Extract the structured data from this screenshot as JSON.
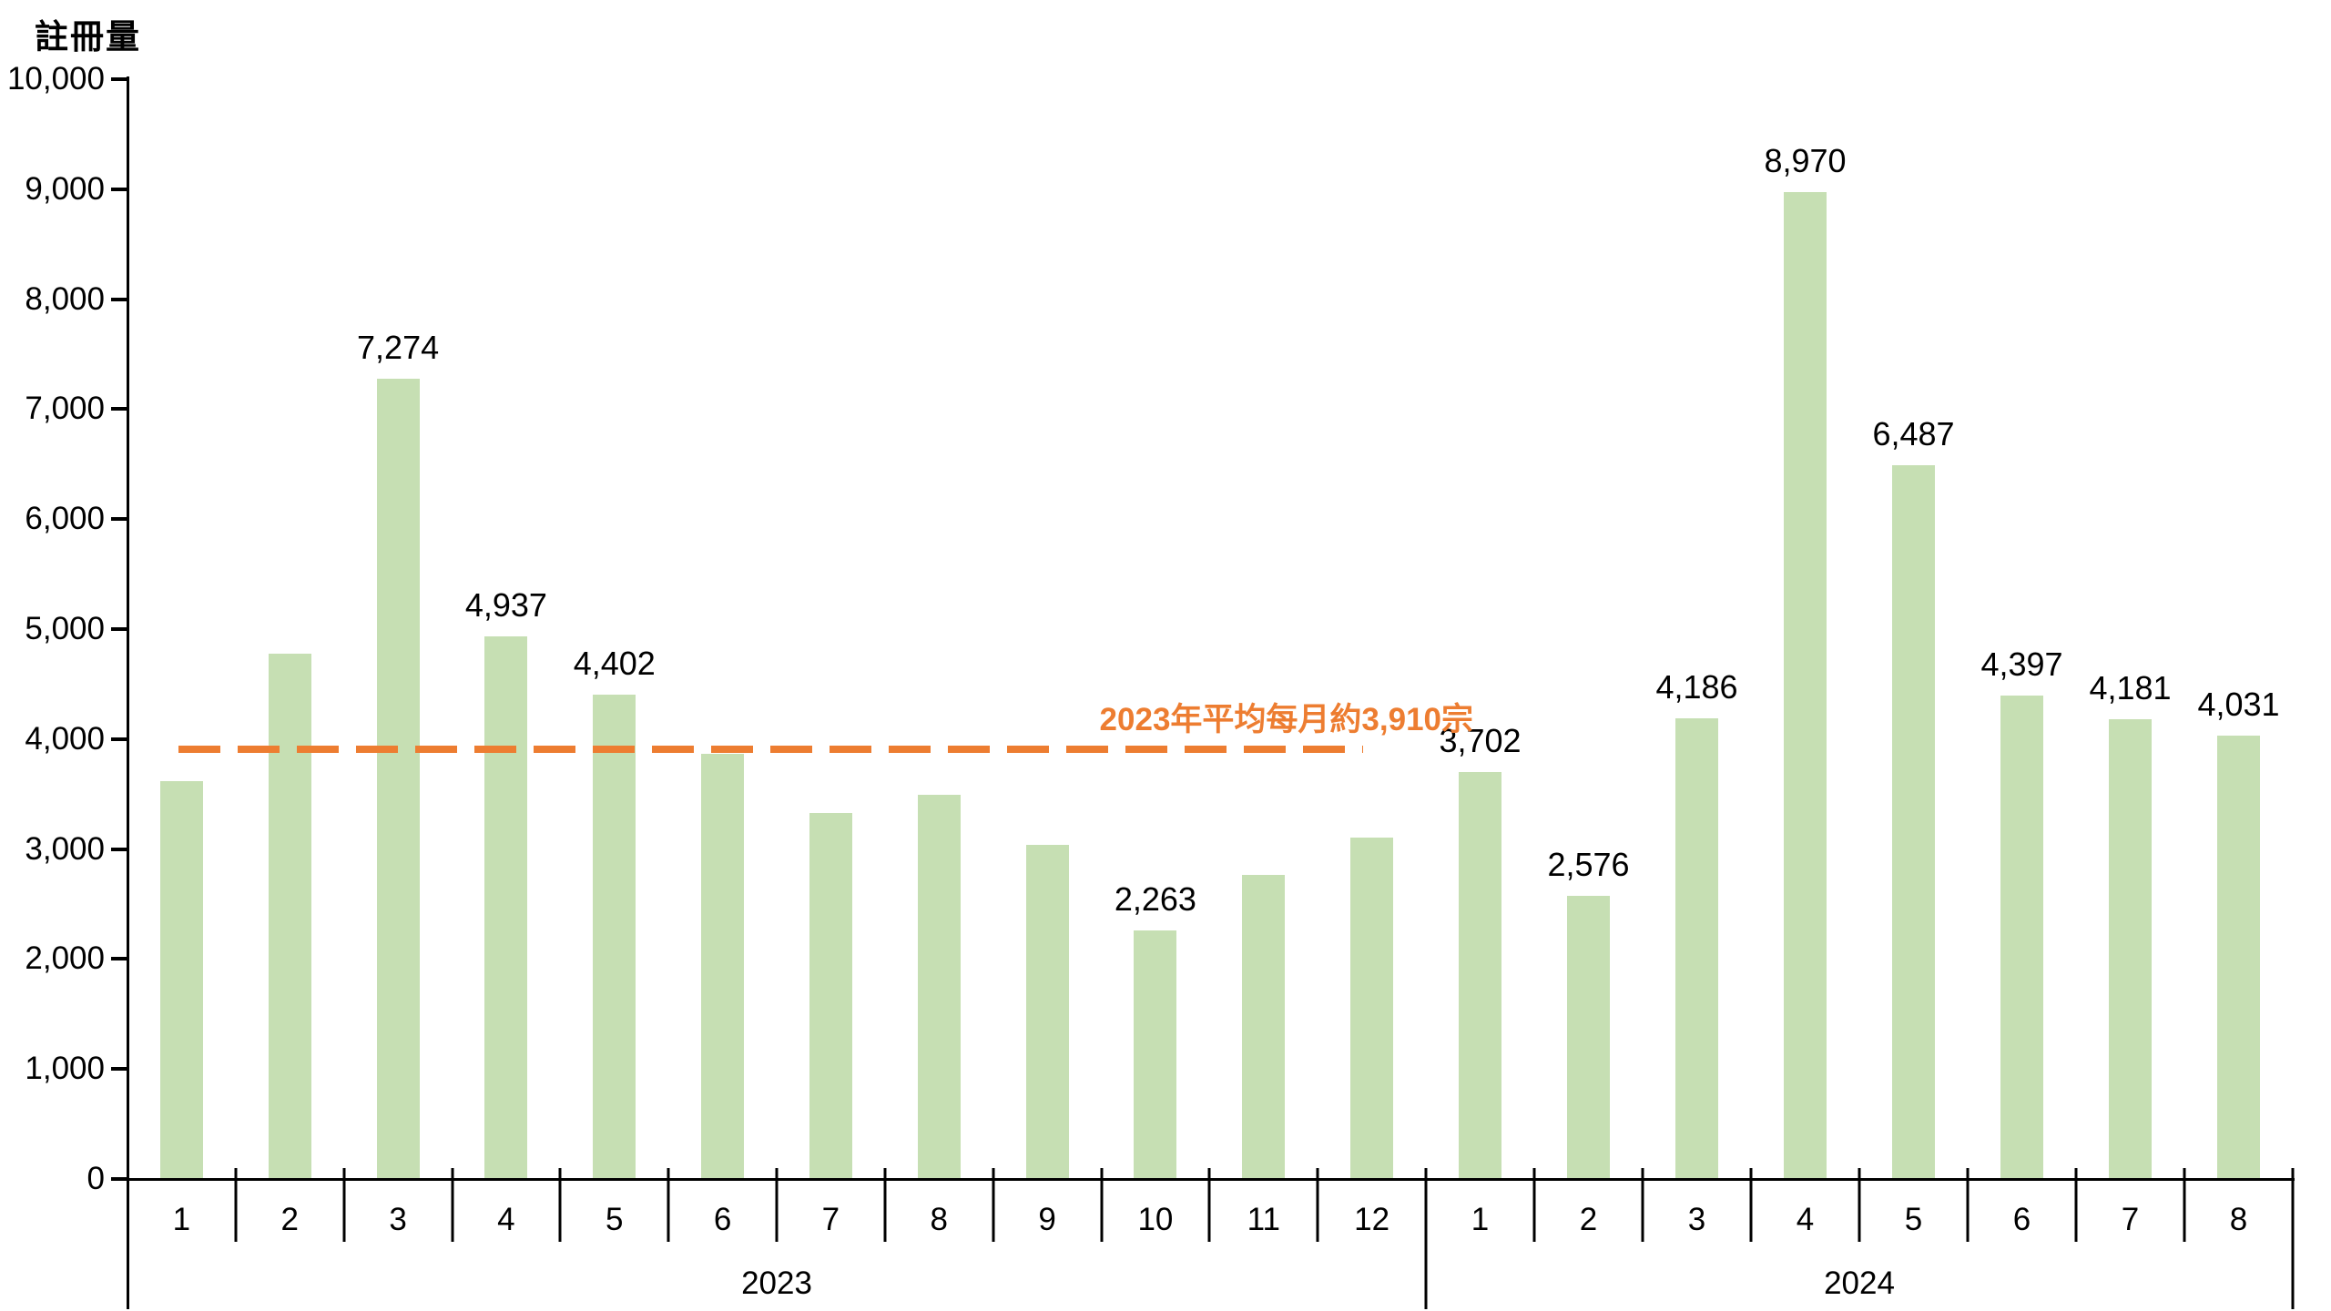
{
  "title": "註冊量",
  "y_axis": {
    "tick_labels": [
      "0",
      "1,000",
      "2,000",
      "3,000",
      "4,000",
      "5,000",
      "6,000",
      "7,000",
      "8,000",
      "9,000",
      "10,000"
    ],
    "tick_values": [
      0,
      1000,
      2000,
      3000,
      4000,
      5000,
      6000,
      7000,
      8000,
      9000,
      10000
    ]
  },
  "average_line": {
    "label": "2023年平均每月約3,910宗",
    "value": 3910
  },
  "colors": {
    "bar": "#C6DFB3",
    "accent_orange": "#ED7D31",
    "axis": "#000000",
    "background": "#FFFFFF",
    "label_text": "#000000"
  },
  "chart_data": {
    "type": "bar",
    "title": "註冊量",
    "xlabel": "",
    "ylabel": "註冊量",
    "ylim": [
      0,
      10000
    ],
    "y_tick_interval": 1000,
    "grid": "off",
    "legend": "none",
    "bar_color": "#C6DFB3",
    "groups": [
      {
        "year": "2023",
        "months": [
          "1",
          "2",
          "3",
          "4",
          "5",
          "6",
          "7",
          "8",
          "9",
          "10",
          "11",
          "12"
        ],
        "values": [
          3620,
          4780,
          7274,
          4937,
          4402,
          3870,
          3325,
          3490,
          3040,
          2263,
          2765,
          3105
        ],
        "bar_labels": [
          "",
          "",
          "7,274",
          "4,937",
          "4,402",
          "",
          "",
          "",
          "",
          "2,263",
          "",
          ""
        ]
      },
      {
        "year": "2024",
        "months": [
          "1",
          "2",
          "3",
          "4",
          "5",
          "6",
          "7",
          "8"
        ],
        "values": [
          3702,
          2576,
          4186,
          8970,
          6487,
          4397,
          4181,
          4031
        ],
        "bar_labels": [
          "3,702",
          "2,576",
          "4,186",
          "8,970",
          "6,487",
          "4,397",
          "4,181",
          "4,031"
        ]
      }
    ],
    "annotation": {
      "text": "2023年平均每月約3,910宗",
      "value": 3910,
      "style": "dashed-horizontal-line",
      "color": "#ED7D31"
    }
  }
}
